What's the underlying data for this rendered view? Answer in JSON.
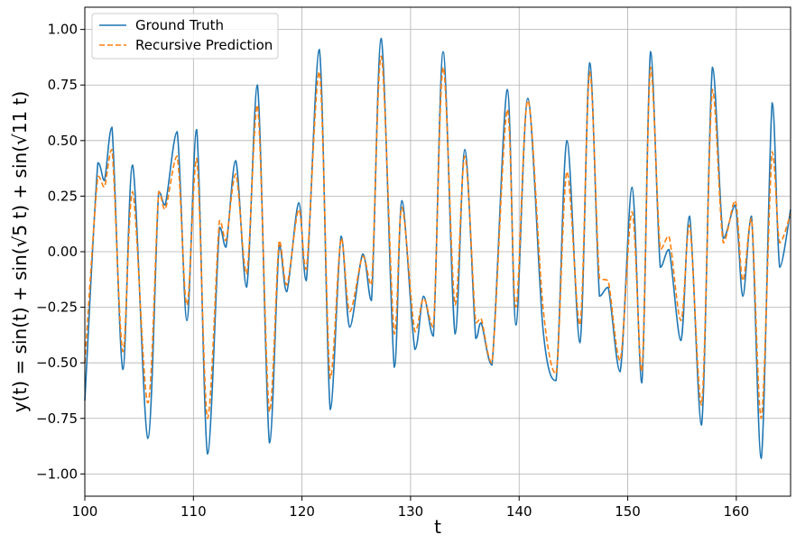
{
  "chart_data": {
    "type": "line",
    "title": "",
    "xlabel": "t",
    "ylabel": "y(t) = sin(t) + sin(√5 t) + sin(√11 t)",
    "xlim": [
      100,
      165
    ],
    "ylim": [
      -1.1,
      1.1
    ],
    "xticks": [
      100,
      110,
      120,
      130,
      140,
      150,
      160
    ],
    "yticks": [
      -1.0,
      -0.75,
      -0.5,
      -0.25,
      0.0,
      0.25,
      0.5,
      0.75,
      1.0
    ],
    "xtick_labels": [
      "100",
      "110",
      "120",
      "130",
      "140",
      "150",
      "160"
    ],
    "ytick_labels": [
      "−1.00",
      "−0.75",
      "−0.50",
      "−0.25",
      "0.00",
      "0.25",
      "0.50",
      "0.75",
      "1.00"
    ],
    "grid": true,
    "legend_position": "top-left",
    "series": [
      {
        "name": "Ground Truth",
        "color": "#1f77b4",
        "style": "solid",
        "x": [
          100.0,
          101.2,
          101.8,
          102.5,
          103.5,
          104.4,
          105.8,
          106.8,
          107.4,
          108.5,
          109.4,
          110.3,
          111.3,
          112.4,
          113.0,
          113.9,
          114.9,
          115.9,
          117.0,
          117.9,
          118.6,
          119.7,
          120.4,
          121.6,
          122.6,
          123.6,
          124.4,
          125.6,
          126.4,
          127.3,
          128.5,
          129.2,
          130.4,
          131.2,
          132.1,
          133.0,
          134.1,
          135.0,
          136.0,
          136.5,
          137.5,
          138.9,
          139.7,
          140.8,
          142.2,
          143.4,
          144.4,
          145.6,
          146.5,
          147.4,
          148.2,
          149.3,
          150.4,
          151.3,
          152.1,
          153.0,
          153.8,
          154.9,
          155.7,
          156.8,
          157.8,
          158.8,
          159.9,
          160.6,
          161.4,
          162.3,
          163.3,
          164.0,
          165.0
        ],
        "y": [
          -0.67,
          0.4,
          0.32,
          0.56,
          -0.53,
          0.39,
          -0.84,
          0.27,
          0.21,
          0.54,
          -0.31,
          0.55,
          -0.91,
          0.11,
          0.02,
          0.41,
          -0.16,
          0.75,
          -0.86,
          0.03,
          -0.18,
          0.22,
          -0.13,
          0.91,
          -0.71,
          0.07,
          -0.34,
          -0.01,
          -0.22,
          0.96,
          -0.52,
          0.23,
          -0.44,
          -0.2,
          -0.38,
          0.9,
          -0.37,
          0.46,
          -0.39,
          -0.32,
          -0.51,
          0.73,
          -0.33,
          0.69,
          -0.35,
          -0.58,
          0.5,
          -0.41,
          0.85,
          -0.2,
          -0.16,
          -0.54,
          0.29,
          -0.59,
          0.9,
          -0.07,
          0.01,
          -0.4,
          0.16,
          -0.78,
          0.83,
          0.06,
          0.21,
          -0.2,
          0.16,
          -0.93,
          0.67,
          -0.07,
          0.19
        ]
      },
      {
        "name": "Recursive Prediction",
        "color": "#ff7f0e",
        "style": "dashed",
        "x": [
          100.0,
          101.2,
          101.8,
          102.5,
          103.5,
          104.4,
          105.8,
          106.8,
          107.4,
          108.5,
          109.4,
          110.3,
          111.3,
          112.4,
          113.0,
          113.9,
          114.9,
          115.9,
          117.0,
          117.9,
          118.6,
          119.7,
          120.4,
          121.6,
          122.6,
          123.6,
          124.4,
          125.6,
          126.4,
          127.3,
          128.5,
          129.2,
          130.4,
          131.2,
          132.1,
          133.0,
          134.1,
          135.0,
          136.0,
          136.5,
          137.5,
          138.9,
          139.7,
          140.8,
          142.2,
          143.4,
          144.4,
          145.6,
          146.5,
          147.4,
          148.2,
          149.3,
          150.4,
          151.3,
          152.1,
          153.0,
          153.8,
          154.9,
          155.7,
          156.8,
          157.8,
          158.8,
          159.9,
          160.6,
          161.4,
          162.3,
          163.3,
          164.0,
          165.0
        ],
        "y": [
          -0.5,
          0.34,
          0.29,
          0.46,
          -0.45,
          0.27,
          -0.68,
          0.27,
          0.19,
          0.43,
          -0.24,
          0.42,
          -0.75,
          0.14,
          0.05,
          0.35,
          -0.1,
          0.66,
          -0.72,
          0.05,
          -0.15,
          0.19,
          -0.08,
          0.81,
          -0.57,
          0.06,
          -0.27,
          -0.02,
          -0.15,
          0.88,
          -0.37,
          0.2,
          -0.36,
          -0.21,
          -0.34,
          0.83,
          -0.24,
          0.43,
          -0.32,
          -0.3,
          -0.5,
          0.64,
          -0.25,
          0.68,
          -0.25,
          -0.55,
          0.36,
          -0.33,
          0.81,
          -0.12,
          -0.13,
          -0.49,
          0.18,
          -0.54,
          0.83,
          0.01,
          0.07,
          -0.31,
          0.12,
          -0.69,
          0.73,
          0.04,
          0.23,
          -0.13,
          0.15,
          -0.75,
          0.45,
          0.04,
          0.17
        ]
      }
    ]
  }
}
